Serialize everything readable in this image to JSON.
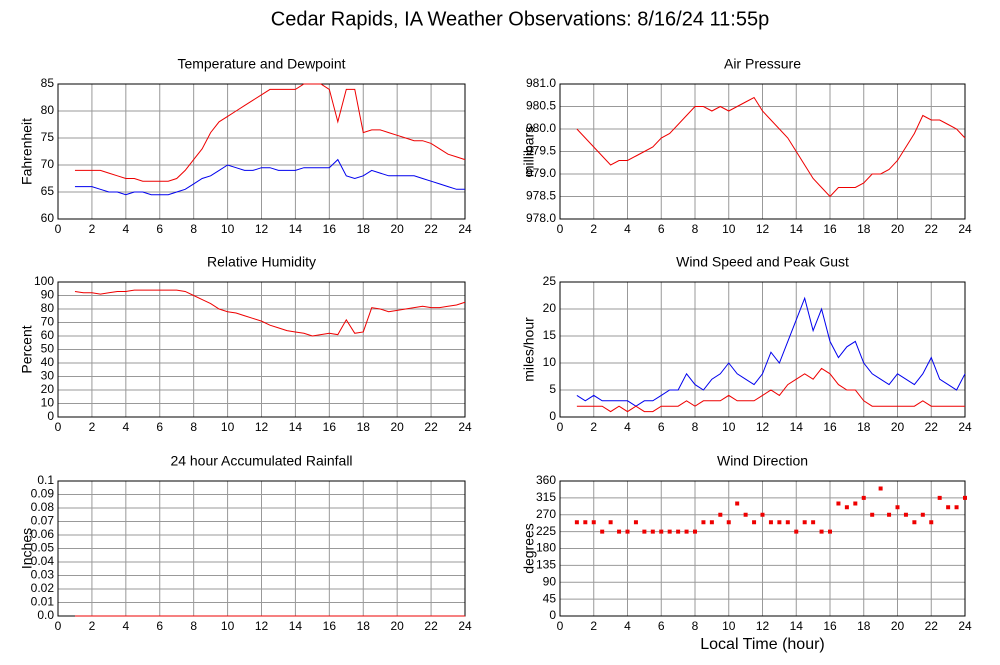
{
  "title": "Cedar Rapids, IA Weather Observations: 8/16/24 11:55p",
  "chart_data": [
    {
      "type": "line",
      "title": "Temperature and Dewpoint",
      "ylabel": "Fahrenheit",
      "x": [
        1,
        1.5,
        2,
        2.5,
        3,
        3.5,
        4,
        4.5,
        5,
        5.5,
        6,
        6.5,
        7,
        7.5,
        8,
        8.5,
        9,
        9.5,
        10,
        10.5,
        11,
        11.5,
        12,
        12.5,
        13,
        13.5,
        14,
        14.5,
        15,
        15.5,
        16,
        16.5,
        17,
        17.5,
        18,
        18.5,
        19,
        19.5,
        20,
        20.5,
        21,
        21.5,
        22,
        22.5,
        23,
        23.5,
        24
      ],
      "series": [
        {
          "color": "#ee0000",
          "values": [
            69,
            69,
            69,
            69,
            68.5,
            68,
            67.5,
            67.5,
            67,
            67,
            67,
            67,
            67.5,
            69,
            71,
            73,
            76,
            78,
            79,
            80,
            81,
            82,
            83,
            84,
            84,
            84,
            84,
            85,
            85,
            85,
            84,
            78,
            84,
            84,
            76,
            76.5,
            76.5,
            76,
            75.5,
            75,
            74.5,
            74.5,
            74,
            73,
            72,
            71.5,
            71
          ]
        },
        {
          "color": "#0000ee",
          "values": [
            66,
            66,
            66,
            65.5,
            65,
            65,
            64.5,
            65,
            65,
            64.5,
            64.5,
            64.5,
            65,
            65.5,
            66.5,
            67.5,
            68,
            69,
            70,
            69.5,
            69,
            69,
            69.5,
            69.5,
            69,
            69,
            69,
            69.5,
            69.5,
            69.5,
            69.5,
            71,
            68,
            67.5,
            68,
            69,
            68.5,
            68,
            68,
            68,
            68,
            67.5,
            67,
            66.5,
            66,
            65.5,
            65.5
          ]
        }
      ],
      "xlim": [
        0,
        24
      ],
      "xticks": [
        0,
        2,
        4,
        6,
        8,
        10,
        12,
        14,
        16,
        18,
        20,
        22,
        24
      ],
      "ylim": [
        60,
        85
      ],
      "yticks": [
        60,
        65,
        70,
        75,
        80,
        85
      ],
      "grid": true
    },
    {
      "type": "line",
      "title": "Air Pressure",
      "ylabel": "millibars",
      "x": [
        1,
        1.5,
        2,
        2.5,
        3,
        3.5,
        4,
        4.5,
        5,
        5.5,
        6,
        6.5,
        7,
        7.5,
        8,
        8.5,
        9,
        9.5,
        10,
        10.5,
        11,
        11.5,
        12,
        12.5,
        13,
        13.5,
        14,
        14.5,
        15,
        15.5,
        16,
        16.5,
        17,
        17.5,
        18,
        18.5,
        19,
        19.5,
        20,
        20.5,
        21,
        21.5,
        22,
        22.5,
        23,
        23.5,
        24
      ],
      "series": [
        {
          "color": "#ee0000",
          "values": [
            980,
            979.8,
            979.6,
            979.4,
            979.2,
            979.3,
            979.3,
            979.4,
            979.5,
            979.6,
            979.8,
            979.9,
            980.1,
            980.3,
            980.5,
            980.5,
            980.4,
            980.5,
            980.4,
            980.5,
            980.6,
            980.7,
            980.4,
            980.2,
            980,
            979.8,
            979.5,
            979.2,
            978.9,
            978.7,
            978.5,
            978.7,
            978.7,
            978.7,
            978.8,
            979,
            979,
            979.1,
            979.3,
            979.6,
            979.9,
            980.3,
            980.2,
            980.2,
            980.1,
            980,
            979.8
          ]
        }
      ],
      "xlim": [
        0,
        24
      ],
      "xticks": [
        0,
        2,
        4,
        6,
        8,
        10,
        12,
        14,
        16,
        18,
        20,
        22,
        24
      ],
      "ylim": [
        978,
        981
      ],
      "yticks": [
        {
          "value": 978,
          "label": "978.0"
        },
        978.5,
        {
          "value": 979,
          "label": "979.0"
        },
        979.5,
        {
          "value": 980,
          "label": "980.0"
        },
        980.5,
        {
          "value": 981,
          "label": "981.0"
        }
      ],
      "grid": true
    },
    {
      "type": "line",
      "title": "Relative Humidity",
      "ylabel": "Percent",
      "x": [
        1,
        1.5,
        2,
        2.5,
        3,
        3.5,
        4,
        4.5,
        5,
        5.5,
        6,
        6.5,
        7,
        7.5,
        8,
        8.5,
        9,
        9.5,
        10,
        10.5,
        11,
        11.5,
        12,
        12.5,
        13,
        13.5,
        14,
        14.5,
        15,
        15.5,
        16,
        16.5,
        17,
        17.5,
        18,
        18.5,
        19,
        19.5,
        20,
        20.5,
        21,
        21.5,
        22,
        22.5,
        23,
        23.5,
        24
      ],
      "series": [
        {
          "color": "#ee0000",
          "values": [
            93,
            92,
            92,
            91,
            92,
            93,
            93,
            94,
            94,
            94,
            94,
            94,
            94,
            93,
            90,
            87,
            84,
            80,
            78,
            77,
            75,
            73,
            71,
            68,
            66,
            64,
            63,
            62,
            60,
            61,
            62,
            61,
            72,
            62,
            63,
            81,
            80,
            78,
            79,
            80,
            81,
            82,
            81,
            81,
            82,
            83,
            85
          ]
        }
      ],
      "xlim": [
        0,
        24
      ],
      "xticks": [
        0,
        2,
        4,
        6,
        8,
        10,
        12,
        14,
        16,
        18,
        20,
        22,
        24
      ],
      "ylim": [
        0,
        100
      ],
      "yticks": [
        0,
        10,
        20,
        30,
        40,
        50,
        60,
        70,
        80,
        90,
        100
      ],
      "grid": true
    },
    {
      "type": "line",
      "title": "Wind Speed and Peak Gust",
      "ylabel": "miles/hour",
      "x": [
        1,
        1.5,
        2,
        2.5,
        3,
        3.5,
        4,
        4.5,
        5,
        5.5,
        6,
        6.5,
        7,
        7.5,
        8,
        8.5,
        9,
        9.5,
        10,
        10.5,
        11,
        11.5,
        12,
        12.5,
        13,
        13.5,
        14,
        14.5,
        15,
        15.5,
        16,
        16.5,
        17,
        17.5,
        18,
        18.5,
        19,
        19.5,
        20,
        20.5,
        21,
        21.5,
        22,
        22.5,
        23,
        23.5,
        24
      ],
      "series": [
        {
          "color": "#0000ee",
          "values": [
            4,
            3,
            4,
            3,
            3,
            3,
            3,
            2,
            3,
            3,
            4,
            5,
            5,
            8,
            6,
            5,
            7,
            8,
            10,
            8,
            7,
            6,
            8,
            12,
            10,
            14,
            18,
            22,
            16,
            20,
            14,
            11,
            13,
            14,
            10,
            8,
            7,
            6,
            8,
            7,
            6,
            8,
            11,
            7,
            6,
            5,
            8
          ]
        },
        {
          "color": "#ee0000",
          "values": [
            2,
            2,
            2,
            2,
            1,
            2,
            1,
            2,
            1,
            1,
            2,
            2,
            2,
            3,
            2,
            3,
            3,
            3,
            4,
            3,
            3,
            3,
            4,
            5,
            4,
            6,
            7,
            8,
            7,
            9,
            8,
            6,
            5,
            5,
            3,
            2,
            2,
            2,
            2,
            2,
            2,
            3,
            2,
            2,
            2,
            2,
            2
          ]
        }
      ],
      "xlim": [
        0,
        24
      ],
      "xticks": [
        0,
        2,
        4,
        6,
        8,
        10,
        12,
        14,
        16,
        18,
        20,
        22,
        24
      ],
      "ylim": [
        0,
        25
      ],
      "yticks": [
        0,
        5,
        10,
        15,
        20,
        25
      ],
      "grid": true
    },
    {
      "type": "line",
      "title": "24 hour Accumulated Rainfall",
      "ylabel": "Inches",
      "x": [
        1,
        24
      ],
      "series": [
        {
          "color": "#ee0000",
          "values": [
            0,
            0
          ]
        }
      ],
      "xlim": [
        0,
        24
      ],
      "xticks": [
        0,
        2,
        4,
        6,
        8,
        10,
        12,
        14,
        16,
        18,
        20,
        22,
        24
      ],
      "ylim": [
        0,
        0.1
      ],
      "yticks": [
        {
          "value": 0,
          "label": "0.0"
        },
        0.01,
        0.02,
        0.03,
        0.04,
        0.05,
        0.06,
        0.07,
        0.08,
        0.09,
        0.1
      ],
      "grid": true
    },
    {
      "type": "scatter",
      "title": "Wind Direction",
      "ylabel": "degrees",
      "xlabel": "Local Time (hour)",
      "x": [
        1,
        1.5,
        2,
        2.5,
        3,
        3.5,
        4,
        4.5,
        5,
        5.5,
        6,
        6.5,
        7,
        7.5,
        8,
        8.5,
        9,
        9.5,
        10,
        10.5,
        11,
        11.5,
        12,
        12.5,
        13,
        13.5,
        14,
        14.5,
        15,
        15.5,
        16,
        16.5,
        17,
        17.5,
        18,
        18.5,
        19,
        19.5,
        20,
        20.5,
        21,
        21.5,
        22,
        22.5,
        23,
        23.5,
        24
      ],
      "series": [
        {
          "color": "#ee0000",
          "values": [
            250,
            250,
            250,
            225,
            250,
            225,
            225,
            250,
            225,
            225,
            225,
            225,
            225,
            225,
            225,
            250,
            250,
            270,
            250,
            300,
            270,
            250,
            270,
            250,
            250,
            250,
            225,
            250,
            250,
            225,
            225,
            300,
            290,
            300,
            315,
            270,
            340,
            270,
            290,
            270,
            250,
            270,
            250,
            315,
            290,
            290,
            315
          ]
        }
      ],
      "xlim": [
        0,
        24
      ],
      "xticks": [
        0,
        2,
        4,
        6,
        8,
        10,
        12,
        14,
        16,
        18,
        20,
        22,
        24
      ],
      "ylim": [
        0,
        360
      ],
      "yticks": [
        0,
        45,
        90,
        135,
        180,
        225,
        270,
        315,
        360
      ],
      "grid": true
    }
  ]
}
